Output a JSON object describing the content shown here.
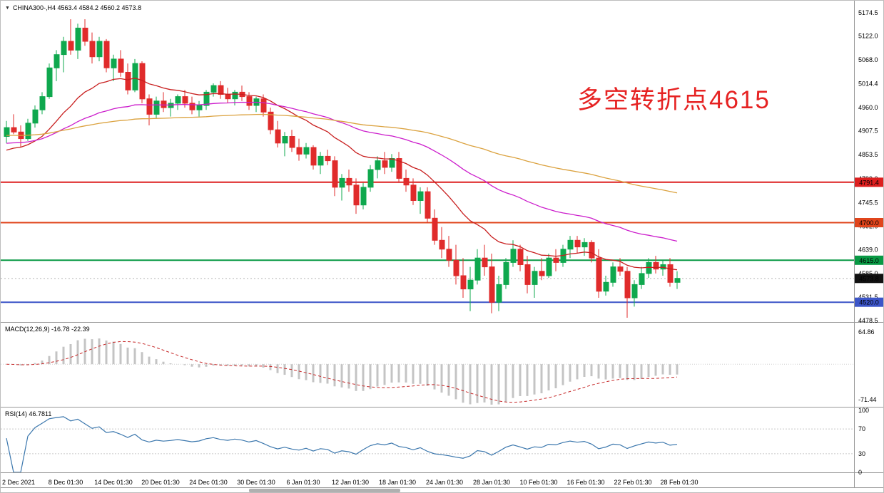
{
  "header": {
    "text": "CHINA300-,H4 4563.4 4584.2 4560.2 4573.8"
  },
  "annotation": {
    "text": "多空转折点4615",
    "color": "#e62222"
  },
  "chart_data": {
    "type": "candlestick",
    "title": "CHINA300-,H4",
    "symbol": "CHINA300-",
    "timeframe": "H4",
    "colors": {
      "up": "#0fa84e",
      "down": "#e02b2b"
    },
    "price_axis": {
      "ticks": [
        "5174.5",
        "5122.0",
        "5068.0",
        "5014.4",
        "4960.0",
        "4907.5",
        "4853.5",
        "4799.0",
        "4745.5",
        "4692.0",
        "4639.0",
        "4585.0",
        "4531.5",
        "4478.5"
      ]
    },
    "x_axis": {
      "labels": [
        "2 Dec 2021",
        "8 Dec 01:30",
        "14 Dec 01:30",
        "20 Dec 01:30",
        "24 Dec 01:30",
        "30 Dec 01:30",
        "6 Jan 01:30",
        "12 Jan 01:30",
        "18 Jan 01:30",
        "24 Jan 01:30",
        "28 Jan 01:30",
        "10 Feb 01:30",
        "16 Feb 01:30",
        "22 Feb 01:30",
        "28 Feb 01:30"
      ],
      "positions": [
        25,
        91,
        158,
        224,
        291,
        358,
        424,
        490,
        556,
        622,
        688,
        754,
        820,
        886,
        951
      ]
    },
    "levels": [
      {
        "value": 4791.4,
        "label": "4791.4",
        "color": "#dd1f1f"
      },
      {
        "value": 4700.0,
        "label": "4700.0",
        "color": "#e0451c"
      },
      {
        "value": 4615.0,
        "label": "4615.0",
        "color": "#089944"
      },
      {
        "value": 4520.0,
        "label": "4520.0",
        "color": "#3c55c8"
      }
    ],
    "current_price": {
      "value": 4573.8,
      "label": "4573.8",
      "box_color": "#111111"
    },
    "moving_averages": [
      {
        "name": "fast",
        "period": 18,
        "seed": 4858,
        "color": "#c81e1e"
      },
      {
        "name": "medium",
        "period": 48,
        "seed": 4878,
        "color": "#cc1ecc"
      },
      {
        "name": "slow",
        "period": 120,
        "seed": 4897,
        "color": "#dba23f"
      }
    ],
    "indicators": {
      "macd": {
        "label": "MACD(12,26,9)",
        "values": "-16.78 -22.39",
        "params": [
          12,
          26,
          9
        ],
        "axis_ticks": [
          "64.86",
          "-71.44"
        ],
        "histogram_color": "#c4c4c4",
        "signal_color": "#c62828"
      },
      "rsi": {
        "label": "RSI(14)",
        "value": "46.7811",
        "period": 14,
        "axis_ticks": [
          "100",
          "70",
          "30",
          "0"
        ],
        "guide_levels": [
          70,
          30
        ],
        "line_color": "#3b77ad"
      }
    },
    "candles": [
      [
        4895,
        4930,
        4880,
        4915
      ],
      [
        4915,
        4945,
        4900,
        4905
      ],
      [
        4905,
        4920,
        4870,
        4890
      ],
      [
        4890,
        4935,
        4885,
        4925
      ],
      [
        4925,
        4965,
        4915,
        4955
      ],
      [
        4955,
        4995,
        4945,
        4985
      ],
      [
        4985,
        5060,
        4980,
        5050
      ],
      [
        5050,
        5090,
        5020,
        5080
      ],
      [
        5080,
        5120,
        5040,
        5110
      ],
      [
        5110,
        5160,
        5080,
        5090
      ],
      [
        5090,
        5150,
        5070,
        5140
      ],
      [
        5140,
        5160,
        5100,
        5110
      ],
      [
        5110,
        5130,
        5060,
        5075
      ],
      [
        5075,
        5120,
        5065,
        5110
      ],
      [
        5110,
        5115,
        5040,
        5050
      ],
      [
        5050,
        5080,
        5020,
        5070
      ],
      [
        5070,
        5090,
        5030,
        5040
      ],
      [
        5040,
        5060,
        4990,
        5000
      ],
      [
        5000,
        5070,
        4995,
        5060
      ],
      [
        5060,
        5065,
        4970,
        4980
      ],
      [
        4980,
        4990,
        4920,
        4945
      ],
      [
        4945,
        4985,
        4935,
        4975
      ],
      [
        4975,
        4995,
        4950,
        4960
      ],
      [
        4960,
        4980,
        4940,
        4970
      ],
      [
        4970,
        4990,
        4955,
        4985
      ],
      [
        4985,
        5000,
        4960,
        4970
      ],
      [
        4970,
        4985,
        4945,
        4955
      ],
      [
        4955,
        4975,
        4940,
        4965
      ],
      [
        4965,
        5000,
        4955,
        4995
      ],
      [
        4995,
        5015,
        4985,
        5010
      ],
      [
        5010,
        5020,
        4980,
        4990
      ],
      [
        4990,
        5005,
        4970,
        4980
      ],
      [
        4980,
        5000,
        4965,
        4995
      ],
      [
        4995,
        5010,
        4975,
        4985
      ],
      [
        4985,
        4995,
        4955,
        4965
      ],
      [
        4965,
        4985,
        4950,
        4980
      ],
      [
        4980,
        4990,
        4940,
        4950
      ],
      [
        4950,
        4960,
        4900,
        4910
      ],
      [
        4910,
        4930,
        4870,
        4880
      ],
      [
        4880,
        4905,
        4850,
        4895
      ],
      [
        4895,
        4910,
        4860,
        4870
      ],
      [
        4870,
        4890,
        4840,
        4855
      ],
      [
        4855,
        4880,
        4845,
        4870
      ],
      [
        4870,
        4875,
        4820,
        4830
      ],
      [
        4830,
        4860,
        4810,
        4850
      ],
      [
        4850,
        4865,
        4830,
        4840
      ],
      [
        4840,
        4850,
        4760,
        4780
      ],
      [
        4780,
        4810,
        4750,
        4800
      ],
      [
        4800,
        4820,
        4770,
        4785
      ],
      [
        4785,
        4800,
        4720,
        4740
      ],
      [
        4740,
        4790,
        4730,
        4780
      ],
      [
        4780,
        4830,
        4770,
        4820
      ],
      [
        4820,
        4850,
        4800,
        4840
      ],
      [
        4840,
        4860,
        4810,
        4825
      ],
      [
        4825,
        4855,
        4815,
        4845
      ],
      [
        4845,
        4860,
        4790,
        4800
      ],
      [
        4800,
        4820,
        4770,
        4785
      ],
      [
        4785,
        4800,
        4740,
        4750
      ],
      [
        4750,
        4780,
        4720,
        4770
      ],
      [
        4770,
        4780,
        4700,
        4710
      ],
      [
        4710,
        4730,
        4650,
        4660
      ],
      [
        4660,
        4690,
        4620,
        4640
      ],
      [
        4640,
        4670,
        4600,
        4615
      ],
      [
        4615,
        4650,
        4560,
        4580
      ],
      [
        4580,
        4620,
        4530,
        4550
      ],
      [
        4550,
        4600,
        4500,
        4570
      ],
      [
        4570,
        4640,
        4560,
        4620
      ],
      [
        4620,
        4650,
        4580,
        4600
      ],
      [
        4600,
        4630,
        4495,
        4520
      ],
      [
        4520,
        4580,
        4500,
        4560
      ],
      [
        4560,
        4620,
        4550,
        4610
      ],
      [
        4610,
        4660,
        4600,
        4640
      ],
      [
        4640,
        4650,
        4590,
        4605
      ],
      [
        4605,
        4625,
        4540,
        4560
      ],
      [
        4560,
        4600,
        4530,
        4590
      ],
      [
        4590,
        4620,
        4570,
        4580
      ],
      [
        4580,
        4630,
        4575,
        4620
      ],
      [
        4620,
        4640,
        4590,
        4610
      ],
      [
        4610,
        4650,
        4600,
        4640
      ],
      [
        4640,
        4670,
        4620,
        4660
      ],
      [
        4660,
        4670,
        4630,
        4645
      ],
      [
        4645,
        4665,
        4625,
        4655
      ],
      [
        4655,
        4660,
        4610,
        4620
      ],
      [
        4620,
        4640,
        4530,
        4545
      ],
      [
        4545,
        4580,
        4535,
        4565
      ],
      [
        4565,
        4610,
        4555,
        4600
      ],
      [
        4600,
        4620,
        4580,
        4590
      ],
      [
        4590,
        4600,
        4485,
        4530
      ],
      [
        4530,
        4570,
        4510,
        4560
      ],
      [
        4560,
        4600,
        4550,
        4585
      ],
      [
        4585,
        4620,
        4575,
        4610
      ],
      [
        4610,
        4625,
        4585,
        4595
      ],
      [
        4595,
        4615,
        4580,
        4605
      ],
      [
        4605,
        4620,
        4555,
        4565
      ],
      [
        4565,
        4590,
        4550,
        4574
      ]
    ]
  }
}
